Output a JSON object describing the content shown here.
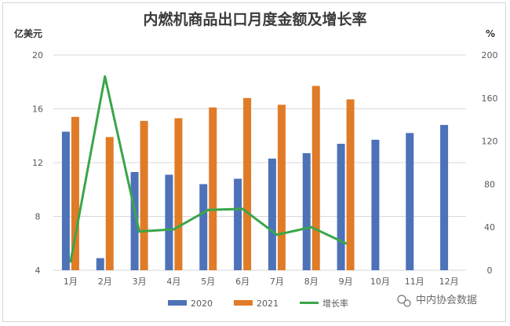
{
  "chart_data": {
    "type": "bar",
    "title": "内燃机商品出口月度金额及增长率",
    "left_axis_unit": "亿美元",
    "right_axis_unit": "%",
    "categories": [
      "1月",
      "2月",
      "3月",
      "4月",
      "5月",
      "6月",
      "7月",
      "8月",
      "9月",
      "10月",
      "11月",
      "12月"
    ],
    "left_ylim": [
      4,
      20
    ],
    "left_ticks": [
      "4",
      "8",
      "12",
      "16",
      "20"
    ],
    "right_ylim": [
      0,
      200
    ],
    "right_ticks": [
      "0",
      "40",
      "80",
      "120",
      "160",
      "200"
    ],
    "grid": true,
    "legend_position": "bottom",
    "series": [
      {
        "name": "2020",
        "kind": "bar",
        "axis": "left",
        "color": "#4e72b8",
        "values": [
          14.3,
          4.9,
          11.3,
          11.1,
          10.4,
          10.8,
          12.3,
          12.7,
          13.4,
          13.7,
          14.2,
          14.8
        ]
      },
      {
        "name": "2021",
        "kind": "bar",
        "axis": "left",
        "color": "#e07b27",
        "values": [
          15.4,
          13.9,
          15.1,
          15.3,
          16.1,
          16.8,
          16.3,
          17.7,
          16.7,
          null,
          null,
          null
        ]
      },
      {
        "name": "增长率",
        "kind": "line",
        "axis": "right",
        "color": "#3aa64a",
        "values": [
          8,
          180,
          36,
          38,
          56,
          57,
          33,
          40,
          25,
          null,
          null,
          null
        ]
      }
    ]
  },
  "watermark": {
    "icon": "wechat-icon",
    "text": "中内协会数据"
  }
}
